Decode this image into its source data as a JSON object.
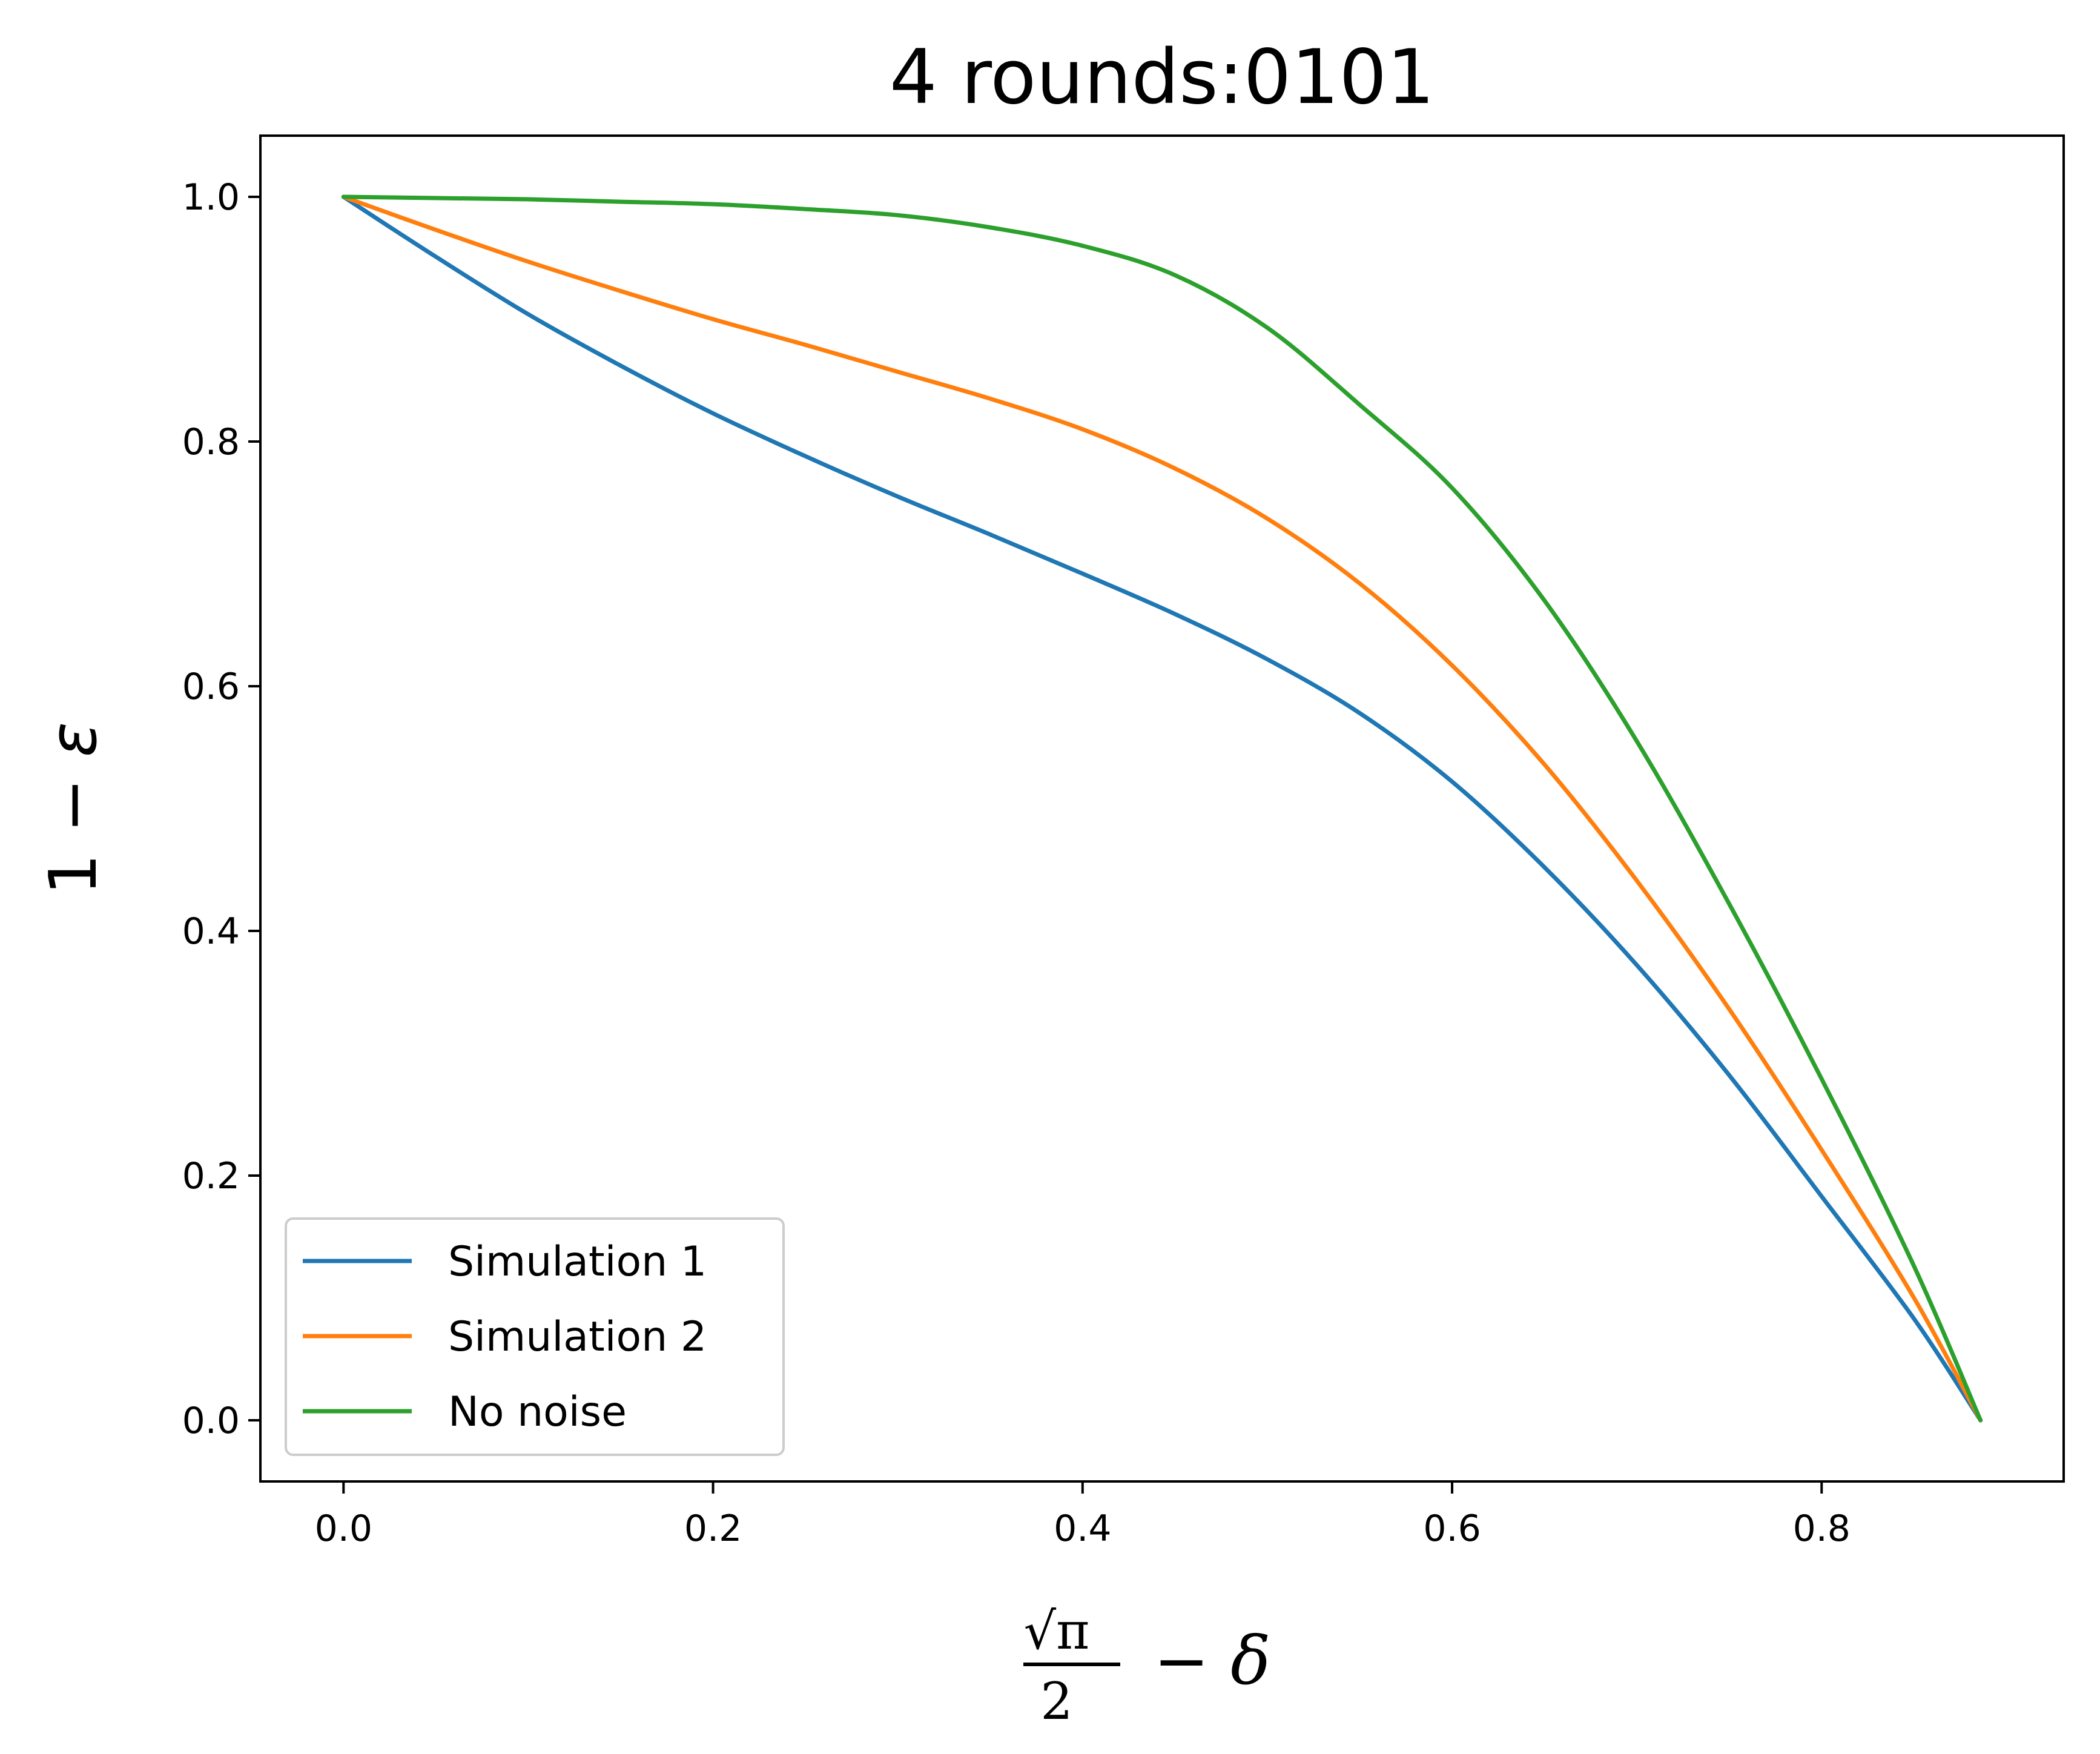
{
  "chart_data": {
    "type": "line",
    "title": "4 rounds:0101",
    "xlabel": "√π/2 − δ",
    "ylabel": "1 − ε",
    "xlim": [
      -0.045,
      0.931
    ],
    "ylim": [
      -0.05,
      1.05
    ],
    "xticks": [
      "0.0",
      "0.2",
      "0.4",
      "0.6",
      "0.8"
    ],
    "yticks": [
      "0.0",
      "0.2",
      "0.4",
      "0.6",
      "0.8",
      "1.0"
    ],
    "grid": false,
    "legend_position": "lower-left",
    "x": [
      0.0,
      0.05,
      0.1,
      0.15,
      0.2,
      0.25,
      0.3,
      0.35,
      0.4,
      0.45,
      0.5,
      0.55,
      0.6,
      0.65,
      0.7,
      0.75,
      0.8,
      0.85,
      0.886
    ],
    "series": [
      {
        "name": "Simulation 1",
        "color": "#1f77b4",
        "values": [
          1.0,
          0.951,
          0.904,
          0.862,
          0.823,
          0.788,
          0.755,
          0.724,
          0.692,
          0.659,
          0.622,
          0.578,
          0.522,
          0.452,
          0.372,
          0.282,
          0.183,
          0.083,
          0.0
        ]
      },
      {
        "name": "Simulation 2",
        "color": "#ff7f0e",
        "values": [
          1.0,
          0.973,
          0.947,
          0.923,
          0.9,
          0.879,
          0.857,
          0.835,
          0.81,
          0.778,
          0.737,
          0.684,
          0.617,
          0.536,
          0.441,
          0.336,
          0.221,
          0.1,
          0.0
        ]
      },
      {
        "name": "No noise",
        "color": "#2ca02c",
        "values": [
          1.0,
          0.999,
          0.998,
          0.996,
          0.994,
          0.99,
          0.985,
          0.975,
          0.96,
          0.936,
          0.893,
          0.83,
          0.762,
          0.67,
          0.555,
          0.422,
          0.279,
          0.126,
          0.0
        ]
      }
    ]
  }
}
